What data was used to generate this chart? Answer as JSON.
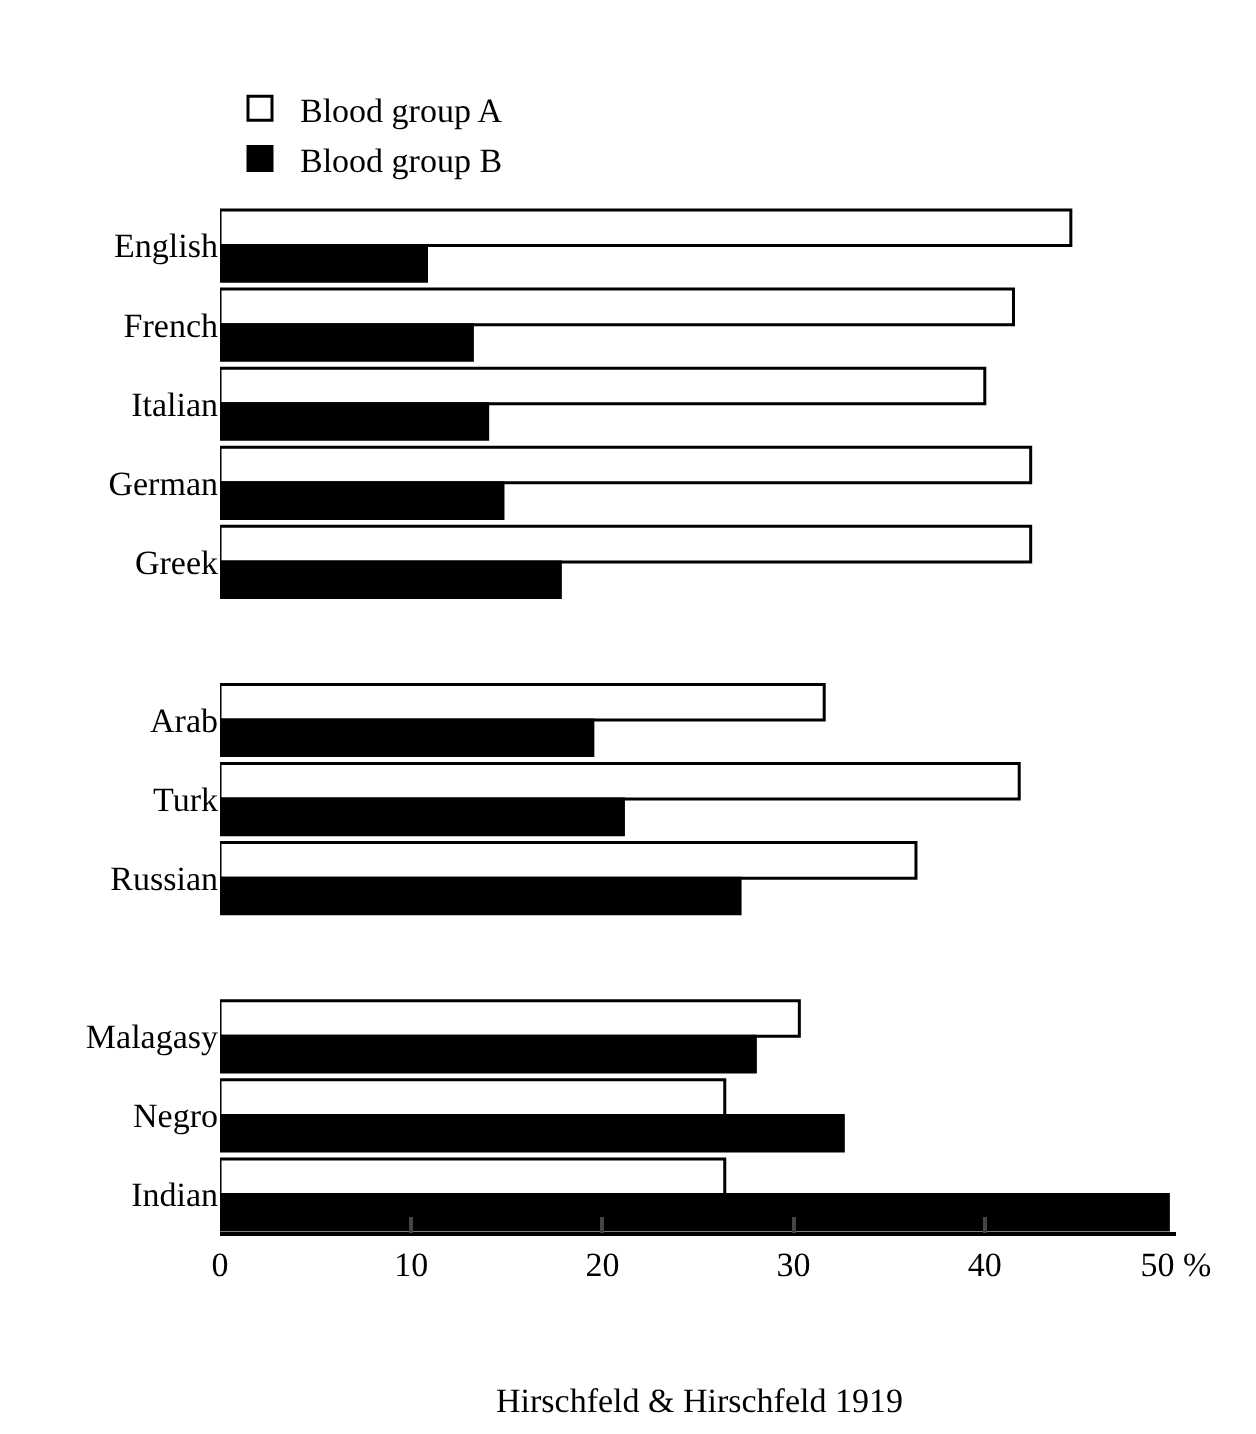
{
  "chart_data": {
    "type": "bar",
    "orientation": "horizontal",
    "categories": [
      "English",
      "French",
      "Italian",
      "German",
      "Greek",
      null,
      "Arab",
      "Turk",
      "Russian",
      null,
      "Malagasy",
      "Negro",
      "Indian"
    ],
    "series": [
      {
        "name": "Blood group A",
        "color": "#ffffff",
        "values": [
          44.5,
          41.5,
          40.0,
          42.4,
          42.4,
          null,
          31.6,
          41.8,
          36.4,
          null,
          30.3,
          26.4,
          26.4
        ]
      },
      {
        "name": "Blood group B",
        "color": "#000000",
        "values": [
          10.8,
          13.2,
          14.0,
          14.8,
          17.8,
          null,
          19.5,
          21.1,
          27.2,
          null,
          28.0,
          32.6,
          49.6
        ]
      }
    ],
    "xlim": [
      0,
      50
    ],
    "xticks": [
      0,
      10,
      20,
      30,
      40,
      {
        "value": 50,
        "label": "50 %"
      }
    ],
    "grid": false,
    "legend": "top left",
    "annotations": [
      "Hirschfeld & Hirschfeld 1919"
    ]
  }
}
